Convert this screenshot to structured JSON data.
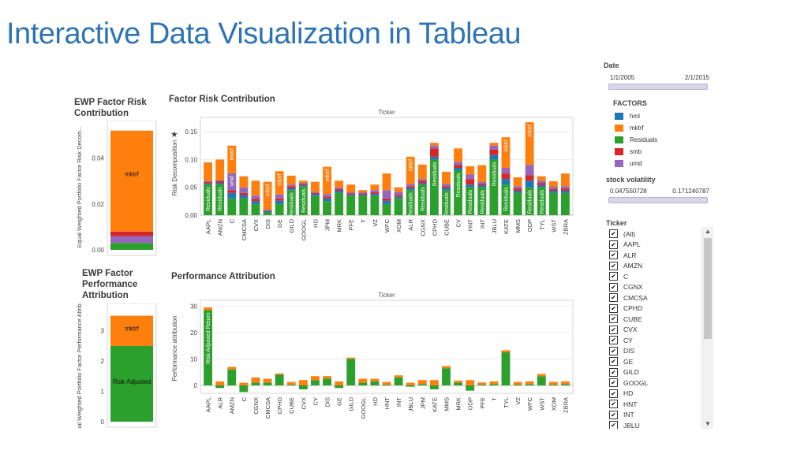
{
  "slide_title": "Interactive Data Visualization in Tableau",
  "ewp_risk": {
    "title": "EWP Factor Risk Contribution",
    "ylabel": "Equal Weighted Portfolio Factor Risk Decom...",
    "ticks": [
      "0.00",
      "0.02",
      "0.04"
    ],
    "bar_label": "mktrf"
  },
  "ewp_perf": {
    "title": "EWP Factor Performance Attribution",
    "ylabel": "Equal Weighted Portfolio Factor Performance Attribution",
    "ticks": [
      "0",
      "1",
      "2",
      "3"
    ],
    "label_top": "mktrf",
    "label_bottom": "Risk Adjusted"
  },
  "risk_chart": {
    "title": "Factor Risk Contribution",
    "header": "Ticker",
    "ylabel": "Risk Decomposition",
    "pin_icon": "pin-icon"
  },
  "perf_chart": {
    "title": "Performance Attribution",
    "header": "Ticker",
    "ylabel": "Performance attribution",
    "first_bar_label": "Risk Adjusted Return"
  },
  "filters": {
    "date_label": "Date",
    "date_start": "1/1/2005",
    "date_end": "2/1/2015",
    "factors_label": "FACTORS",
    "factors": [
      {
        "name": "hml",
        "color": "#1f77b4"
      },
      {
        "name": "mktrf",
        "color": "#ff7f0e"
      },
      {
        "name": "Residuals",
        "color": "#2ca02c"
      },
      {
        "name": "smb",
        "color": "#d62728"
      },
      {
        "name": "umd",
        "color": "#9467bd"
      }
    ],
    "volatility_label": "stock volatility",
    "vol_min": "0.047550728",
    "vol_max": "0.171240787",
    "ticker_label": "Ticker",
    "tickers": [
      "(All)",
      "AAPL",
      "ALR",
      "AMZN",
      "C",
      "CGNX",
      "CMCSA",
      "CPHD",
      "CUBE",
      "CVX",
      "CY",
      "DIS",
      "GE",
      "GILD",
      "GOOGL",
      "HD",
      "HNT",
      "INT",
      "JBLU"
    ]
  },
  "colors": {
    "hml": "#1f77b4",
    "mktrf": "#ff7f0e",
    "residuals": "#2ca02c",
    "smb": "#d62728",
    "umd": "#9467bd",
    "title_blue": "#2e74b5"
  },
  "chart_data": [
    {
      "type": "bar",
      "title": "Factor Risk Contribution",
      "xlabel": "Ticker",
      "ylabel": "Risk Decomposition",
      "ylim": [
        0,
        0.17
      ],
      "yticks": [
        0.0,
        0.05,
        0.1,
        0.15
      ],
      "stacked": true,
      "categories": [
        "AAPL",
        "AMZN",
        "C",
        "CMCSA",
        "CVX",
        "DIS",
        "GE",
        "GILD",
        "GOOGL",
        "HD",
        "JPM",
        "MRK",
        "PFE",
        "T",
        "VZ",
        "WFC",
        "XOM",
        "ALR",
        "CGNX",
        "CPHD",
        "CUBE",
        "CY",
        "HNT",
        "INT",
        "JBLU",
        "KATE",
        "MMS",
        "ODP",
        "TYL",
        "WST",
        "ZBRA"
      ],
      "series": [
        {
          "name": "Residuals",
          "values": [
            0.055,
            0.055,
            0.03,
            0.03,
            0.02,
            0.005,
            0.02,
            0.045,
            0.052,
            0.035,
            0.025,
            0.04,
            0.035,
            0.035,
            0.035,
            0.02,
            0.03,
            0.045,
            0.055,
            0.1,
            0.045,
            0.08,
            0.05,
            0.05,
            0.1,
            0.055,
            0.04,
            0.05,
            0.05,
            0.04,
            0.04
          ]
        },
        {
          "name": "hml",
          "values": [
            0.002,
            0.003,
            0.01,
            0.006,
            0.005,
            0.002,
            0.006,
            0.003,
            0.002,
            0.003,
            0.005,
            0.004,
            0.002,
            0.002,
            0.003,
            0.006,
            0.003,
            0.004,
            0.003,
            0.005,
            0.004,
            0.005,
            0.005,
            0.004,
            0.008,
            0.01,
            0.004,
            0.012,
            0.004,
            0.004,
            0.004
          ]
        },
        {
          "name": "smb",
          "values": [
            0.003,
            0.003,
            0.005,
            0.004,
            0.004,
            0.001,
            0.004,
            0.004,
            0.002,
            0.002,
            0.003,
            0.003,
            0.002,
            0.002,
            0.003,
            0.004,
            0.003,
            0.003,
            0.004,
            0.015,
            0.003,
            0.005,
            0.01,
            0.003,
            0.01,
            0.01,
            0.004,
            0.01,
            0.004,
            0.003,
            0.004
          ]
        },
        {
          "name": "umd",
          "values": [
            0.002,
            0.002,
            0.03,
            0.01,
            0.006,
            0.002,
            0.007,
            0.003,
            0.002,
            0.002,
            0.005,
            0.003,
            0.002,
            0.002,
            0.004,
            0.015,
            0.006,
            0.004,
            0.003,
            0.005,
            0.004,
            0.006,
            0.008,
            0.003,
            0.007,
            0.01,
            0.004,
            0.018,
            0.004,
            0.004,
            0.004
          ]
        },
        {
          "name": "mktrf",
          "values": [
            0.033,
            0.037,
            0.05,
            0.02,
            0.027,
            0.05,
            0.042,
            0.016,
            0.004,
            0.018,
            0.049,
            0.012,
            0.014,
            0.004,
            0.01,
            0.03,
            0.008,
            0.049,
            0.026,
            0.005,
            0.022,
            0.024,
            0.015,
            0.03,
            0.005,
            0.055,
            0.016,
            0.077,
            0.008,
            0.01,
            0.023
          ]
        }
      ]
    },
    {
      "type": "bar",
      "title": "Performance Attribution",
      "xlabel": "Ticker",
      "ylabel": "Performance attribution",
      "ylim": [
        -3,
        31
      ],
      "yticks": [
        0,
        10,
        20,
        30
      ],
      "stacked": true,
      "categories": [
        "AAPL",
        "ALR",
        "AMZN",
        "C",
        "CGNX",
        "CMCSA",
        "CPHD",
        "CUBE",
        "CVX",
        "CY",
        "DIS",
        "GE",
        "GILD",
        "GOOGL",
        "HD",
        "HNT",
        "INT",
        "JBLU",
        "JPM",
        "KATE",
        "MMS",
        "MRK",
        "ODP",
        "PFE",
        "T",
        "TYL",
        "VZ",
        "WFC",
        "WST",
        "XOM",
        "ZBRA"
      ],
      "series": [
        {
          "name": "Risk Adjusted Return",
          "values": [
            28.5,
            -1.0,
            6.0,
            -2.5,
            1.0,
            1.0,
            4.0,
            0.3,
            -1.5,
            2.0,
            2.5,
            -1.0,
            10.0,
            1.0,
            1.5,
            0.3,
            3.0,
            -0.5,
            0.5,
            -1.5,
            6.5,
            1.0,
            -2.0,
            0.3,
            0.5,
            12.5,
            0.3,
            0.5,
            3.5,
            0.3,
            0.5
          ]
        },
        {
          "name": "mktrf",
          "values": [
            1.0,
            1.5,
            1.0,
            1.0,
            2.0,
            1.5,
            0.5,
            1.0,
            2.0,
            1.5,
            1.0,
            1.5,
            0.5,
            1.5,
            1.0,
            1.0,
            0.8,
            1.0,
            1.5,
            2.0,
            0.8,
            0.8,
            2.0,
            0.8,
            1.0,
            0.8,
            1.0,
            1.0,
            0.8,
            1.0,
            1.0
          ]
        }
      ]
    },
    {
      "type": "bar",
      "title": "EWP Factor Risk Contribution",
      "ylabel": "Equal Weighted Portfolio Factor Risk Decom...",
      "ylim": [
        0,
        0.055
      ],
      "yticks": [
        0.0,
        0.02,
        0.04
      ],
      "stacked": true,
      "categories": [
        ""
      ],
      "series": [
        {
          "name": "Residuals",
          "values": [
            0.003
          ]
        },
        {
          "name": "umd",
          "values": [
            0.003
          ]
        },
        {
          "name": "smb",
          "values": [
            0.002
          ]
        },
        {
          "name": "mktrf",
          "values": [
            0.044
          ]
        }
      ]
    },
    {
      "type": "bar",
      "title": "EWP Factor Performance Attribution",
      "ylabel": "Equal Weighted Portfolio Factor Performance Attribution",
      "ylim": [
        0,
        3.8
      ],
      "yticks": [
        0,
        1,
        2,
        3
      ],
      "stacked": true,
      "categories": [
        ""
      ],
      "series": [
        {
          "name": "Risk Adjusted",
          "values": [
            2.5
          ]
        },
        {
          "name": "mktrf",
          "values": [
            1.0
          ]
        }
      ]
    }
  ]
}
